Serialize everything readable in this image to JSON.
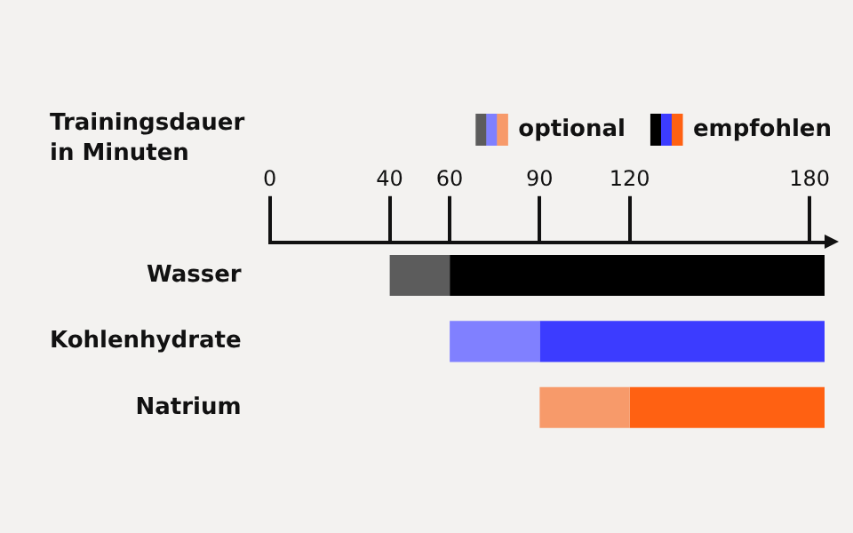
{
  "chart_data": {
    "type": "bar",
    "orientation": "horizontal",
    "xlabel": "Trainingsdauer\nin Minuten",
    "categories": [
      "Wasser",
      "Kohlenhydrate",
      "Natrium"
    ],
    "series": [
      {
        "name": "optional",
        "colors": [
          "#5c5c5c",
          "#8080ff",
          "#f79a6a"
        ],
        "base": [
          40,
          60,
          90
        ],
        "values": [
          20,
          30,
          30
        ]
      },
      {
        "name": "empfohlen",
        "colors": [
          "#000000",
          "#3c3cff",
          "#ff6112"
        ],
        "base": [
          60,
          90,
          120
        ],
        "values": [
          125,
          95,
          65
        ]
      }
    ],
    "xlim": [
      0,
      185
    ],
    "xticks": [
      0,
      40,
      60,
      90,
      120,
      180
    ],
    "legend": "top right",
    "grid": false
  }
}
